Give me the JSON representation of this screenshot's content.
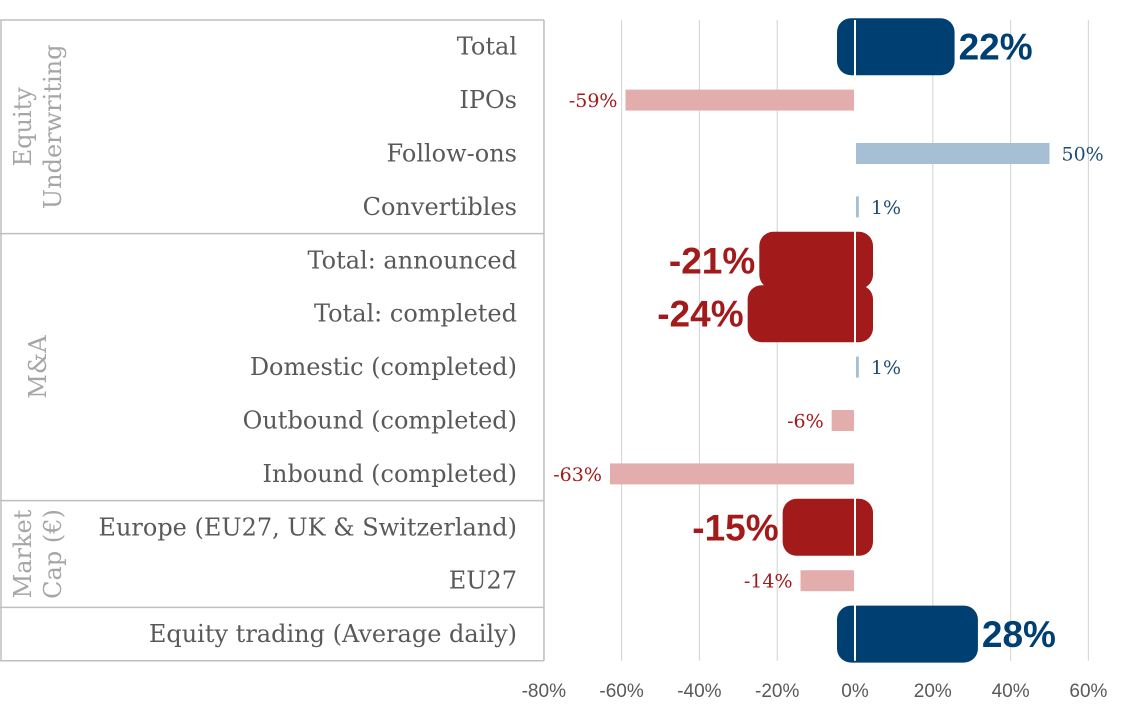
{
  "chart_data": {
    "type": "bar",
    "orientation": "horizontal",
    "title": "",
    "xlabel": "",
    "ylabel": "",
    "xlim": [
      -0.8,
      0.6
    ],
    "x_ticks": [
      -0.8,
      -0.6,
      -0.4,
      -0.2,
      0,
      0.2,
      0.4,
      0.6
    ],
    "x_tick_labels": [
      "-80%",
      "-60%",
      "-40%",
      "-20%",
      "0%",
      "20%",
      "40%",
      "60%"
    ],
    "grid": "vertical",
    "groups": [
      {
        "label": "Equity Underwriting",
        "label_lines": [
          "Equity",
          "Underwriting"
        ],
        "start": 0,
        "end": 3
      },
      {
        "label": "M&A",
        "label_lines": [
          "M&A"
        ],
        "start": 4,
        "end": 8
      },
      {
        "label": "Market Cap (€)",
        "label_lines": [
          "Market",
          "Cap (€)"
        ],
        "start": 9,
        "end": 10
      },
      {
        "label": "",
        "label_lines": [],
        "start": 11,
        "end": 11
      }
    ],
    "categories": [
      "Total",
      "IPOs",
      "Follow-ons",
      "Convertibles",
      "Total: announced",
      "Total: completed",
      "Domestic (completed)",
      "Outbound (completed)",
      "Inbound (completed)",
      "Europe (EU27, UK & Switzerland)",
      "EU27",
      "Equity trading (Average daily)"
    ],
    "values": [
      0.22,
      -0.59,
      0.5,
      0.01,
      -0.21,
      -0.24,
      0.01,
      -0.06,
      -0.63,
      -0.15,
      -0.14,
      0.28
    ],
    "data_labels": [
      "22%",
      "-59%",
      "50%",
      "1%",
      "-21%",
      "-24%",
      "1%",
      "-6%",
      "-63%",
      "-15%",
      "-14%",
      "28%"
    ],
    "emphasized": [
      true,
      false,
      false,
      false,
      true,
      true,
      false,
      false,
      false,
      true,
      false,
      true
    ],
    "colors": {
      "positive_strong": "#003f72",
      "negative_strong": "#a31a1a",
      "positive_light": "#a7bfd5",
      "negative_light": "#e3adad",
      "positive_text": "#1f4e79",
      "negative_text": "#a31a1a",
      "grid": "#d9d9d9",
      "divider": "#bfbfbf"
    }
  }
}
